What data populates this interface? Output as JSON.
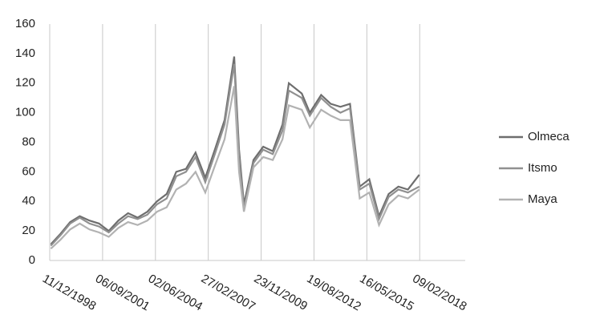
{
  "chart_data": {
    "type": "line",
    "x": [
      "01/01/1999",
      "01/07/1999",
      "01/01/2000",
      "01/07/2000",
      "01/01/2001",
      "01/07/2001",
      "01/01/2002",
      "01/07/2002",
      "01/01/2003",
      "01/07/2003",
      "01/01/2004",
      "01/07/2004",
      "01/01/2005",
      "01/07/2005",
      "01/01/2006",
      "01/07/2006",
      "01/01/2007",
      "01/07/2007",
      "01/01/2008",
      "01/07/2008",
      "01/10/2008",
      "01/01/2009",
      "01/07/2009",
      "01/01/2010",
      "01/07/2010",
      "01/01/2011",
      "01/05/2011",
      "01/01/2012",
      "01/06/2012",
      "01/01/2013",
      "01/07/2013",
      "01/01/2014",
      "01/07/2014",
      "01/01/2015",
      "01/07/2015",
      "01/01/2016",
      "01/07/2016",
      "01/01/2017",
      "01/07/2017",
      "01/02/2018"
    ],
    "series": [
      {
        "name": "Olmeca",
        "color": "#6e6e6e",
        "values": [
          11,
          18,
          26,
          30,
          27,
          25,
          20,
          27,
          32,
          29,
          33,
          40,
          45,
          60,
          62,
          73,
          56,
          75,
          95,
          138,
          75,
          38,
          68,
          77,
          74,
          92,
          120,
          113,
          100,
          112,
          106,
          104,
          106,
          50,
          55,
          30,
          45,
          50,
          48,
          58
        ]
      },
      {
        "name": "Itsmo",
        "color": "#909090",
        "values": [
          10,
          17,
          25,
          29,
          25,
          23,
          19,
          25,
          30,
          28,
          31,
          38,
          42,
          57,
          60,
          70,
          53,
          72,
          92,
          133,
          70,
          35,
          66,
          75,
          72,
          88,
          115,
          110,
          98,
          110,
          104,
          100,
          103,
          48,
          52,
          28,
          43,
          48,
          46,
          50
        ]
      },
      {
        "name": "Maya",
        "color": "#b2b2b2",
        "values": [
          8,
          14,
          21,
          25,
          21,
          19,
          16,
          22,
          26,
          24,
          27,
          33,
          36,
          48,
          52,
          60,
          46,
          64,
          82,
          118,
          60,
          33,
          63,
          70,
          68,
          82,
          105,
          102,
          90,
          102,
          98,
          95,
          95,
          42,
          46,
          24,
          38,
          44,
          42,
          48
        ]
      }
    ],
    "xlim": [
      "11/12/1998",
      "19/06/2020"
    ],
    "xticks": [
      "11/12/1998",
      "06/09/2001",
      "02/06/2004",
      "27/02/2007",
      "23/11/2009",
      "19/08/2012",
      "16/05/2015",
      "09/02/2018"
    ],
    "ylim": [
      0,
      160
    ],
    "yticks": [
      0,
      20,
      40,
      60,
      80,
      100,
      120,
      140,
      160
    ],
    "grid": true,
    "legend": "right"
  }
}
